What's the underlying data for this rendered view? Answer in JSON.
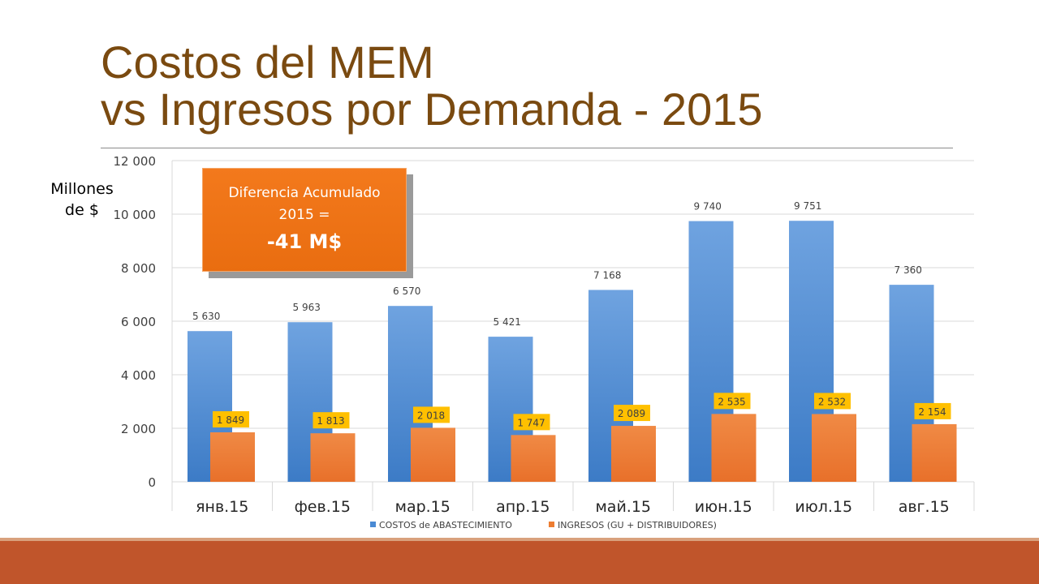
{
  "title": {
    "line1": "Costos del MEM",
    "line2": "vs Ingresos por Demanda - 2015"
  },
  "callout": {
    "line1": "Diferencia Acumulado",
    "line2": "2015 =",
    "value": "-41 M$"
  },
  "colors": {
    "title": "#7a4a10",
    "costs": "#4a8ad4",
    "income": "#ed7d31",
    "label_bg": "#ffc000",
    "bottom_bar": "#c0552b"
  },
  "chart_data": {
    "type": "bar",
    "categories": [
      "янв.15",
      "фев.15",
      "мар.15",
      "апр.15",
      "май.15",
      "июн.15",
      "июл.15",
      "авг.15"
    ],
    "series": [
      {
        "name": "COSTOS de ABASTECIMIENTO",
        "values": [
          5630,
          5963,
          6570,
          5421,
          7168,
          9740,
          9751,
          7360
        ],
        "labels": [
          "5 630",
          "5 963",
          "6 570",
          "5 421",
          "7 168",
          "9 740",
          "9 751",
          "7 360"
        ]
      },
      {
        "name": "INGRESOS (GU + DISTRIBUIDORES)",
        "values": [
          1849,
          1813,
          2018,
          1747,
          2089,
          2535,
          2532,
          2154
        ],
        "labels": [
          "1 849",
          "1 813",
          "2 018",
          "1 747",
          "2 089",
          "2 535",
          "2 532",
          "2 154"
        ]
      }
    ],
    "ylabel": "Millones de $",
    "ylim": [
      0,
      12000
    ],
    "yticks": [
      0,
      2000,
      4000,
      6000,
      8000,
      10000,
      12000
    ],
    "ytick_labels": [
      "0",
      "2 000",
      "4 000",
      "6 000",
      "8 000",
      "10 000",
      "12 000"
    ],
    "grid": true,
    "legend": "bottom"
  }
}
